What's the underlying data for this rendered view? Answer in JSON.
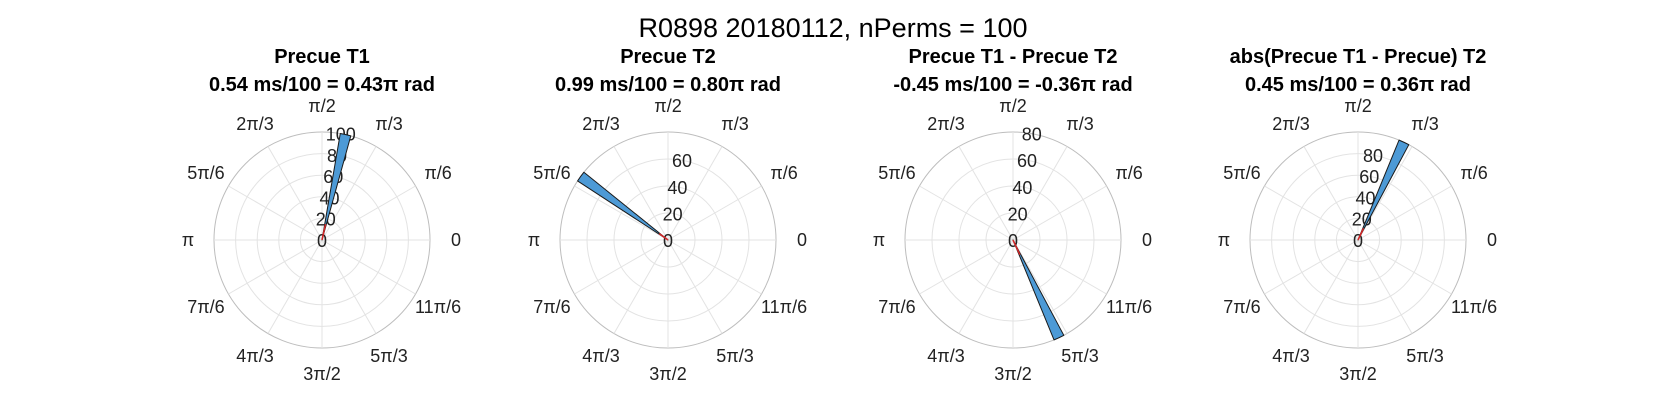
{
  "figure": {
    "suptitle": "R0898 20180112, nPerms = 100"
  },
  "colors": {
    "bar_fill": "#4d9ad6",
    "bar_edge": "#1a1a1a",
    "mean_line": "#d62728",
    "grid": "#e3e3e3",
    "outer_ring": "#bdbdbd"
  },
  "chart_data": [
    {
      "type": "polar-histogram",
      "title": "Precue T1",
      "subtitle": "0.54 ms/100 = 0.43π rad",
      "theta_ticks": [
        "0",
        "π/6",
        "π/3",
        "π/2",
        "2π/3",
        "5π/6",
        "π",
        "7π/6",
        "4π/3",
        "3π/2",
        "5π/3",
        "11π/6"
      ],
      "r_ticks": [
        "0",
        "20",
        "40",
        "60",
        "80",
        "100"
      ],
      "rlim": [
        0,
        100
      ],
      "bin_width_rad": 0.1,
      "bars": [
        {
          "theta_pi": 0.43,
          "count": 100
        }
      ],
      "mean_vector": {
        "theta_pi": 0.43,
        "length": 15
      }
    },
    {
      "type": "polar-histogram",
      "title": "Precue T2",
      "subtitle": "0.99 ms/100 = 0.80π rad",
      "theta_ticks": [
        "0",
        "π/6",
        "π/3",
        "π/2",
        "2π/3",
        "5π/6",
        "π",
        "7π/6",
        "4π/3",
        "3π/2",
        "5π/3",
        "11π/6"
      ],
      "r_ticks": [
        "0",
        "20",
        "40",
        "60"
      ],
      "rlim": [
        0,
        80
      ],
      "bin_width_rad": 0.1,
      "bars": [
        {
          "theta_pi": 0.8,
          "count": 100
        }
      ],
      "mean_vector": {
        "theta_pi": 0.8,
        "length": 8
      }
    },
    {
      "type": "polar-histogram",
      "title": "Precue T1 - Precue T2",
      "subtitle": "-0.45 ms/100 = -0.36π rad",
      "theta_ticks": [
        "0",
        "π/6",
        "π/3",
        "π/2",
        "2π/3",
        "5π/6",
        "π",
        "7π/6",
        "4π/3",
        "3π/2",
        "5π/3",
        "11π/6"
      ],
      "r_ticks": [
        "0",
        "20",
        "40",
        "60",
        "80"
      ],
      "rlim": [
        0,
        80
      ],
      "bin_width_rad": 0.1,
      "bars": [
        {
          "theta_pi": -0.36,
          "count": 100
        }
      ],
      "mean_vector": {
        "theta_pi": -0.36,
        "length": 12
      }
    },
    {
      "type": "polar-histogram",
      "title": "abs(Precue T1 - Precue) T2",
      "subtitle": "0.45 ms/100 = 0.36π rad",
      "theta_ticks": [
        "0",
        "π/6",
        "π/3",
        "π/2",
        "2π/3",
        "5π/6",
        "π",
        "7π/6",
        "4π/3",
        "3π/2",
        "5π/3",
        "11π/6"
      ],
      "r_ticks": [
        "0",
        "20",
        "40",
        "60",
        "80"
      ],
      "rlim": [
        0,
        100
      ],
      "bin_width_rad": 0.1,
      "bars": [
        {
          "theta_pi": 0.36,
          "count": 100
        }
      ],
      "mean_vector": {
        "theta_pi": 0.36,
        "length": 12
      }
    }
  ]
}
